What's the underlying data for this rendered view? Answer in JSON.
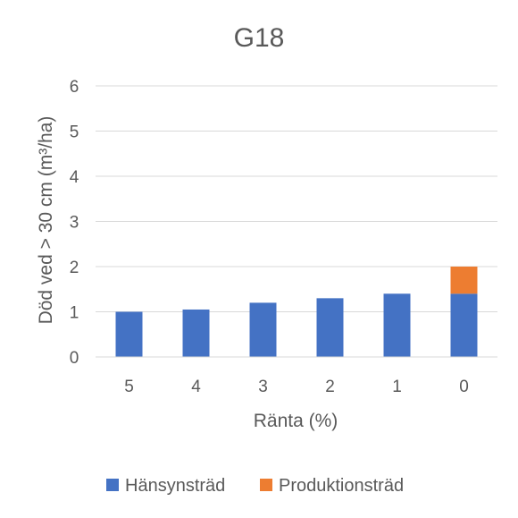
{
  "chart_data": {
    "type": "bar",
    "stacked": true,
    "title": "G18",
    "xlabel": "Ränta (%)",
    "ylabel": "Död ved > 30 cm (m³/ha)",
    "categories": [
      "5",
      "4",
      "3",
      "2",
      "1",
      "0"
    ],
    "series": [
      {
        "name": "Hänsynsträd",
        "color": "#4472C4",
        "values": [
          1.0,
          1.05,
          1.2,
          1.3,
          1.4,
          1.4
        ]
      },
      {
        "name": "Produktionsträd",
        "color": "#ED7D31",
        "values": [
          0,
          0,
          0,
          0,
          0,
          0.6
        ]
      }
    ],
    "ylim": [
      0,
      6
    ],
    "yticks": [
      0,
      1,
      2,
      3,
      4,
      5,
      6
    ],
    "grid": true,
    "legend_position": "bottom"
  }
}
